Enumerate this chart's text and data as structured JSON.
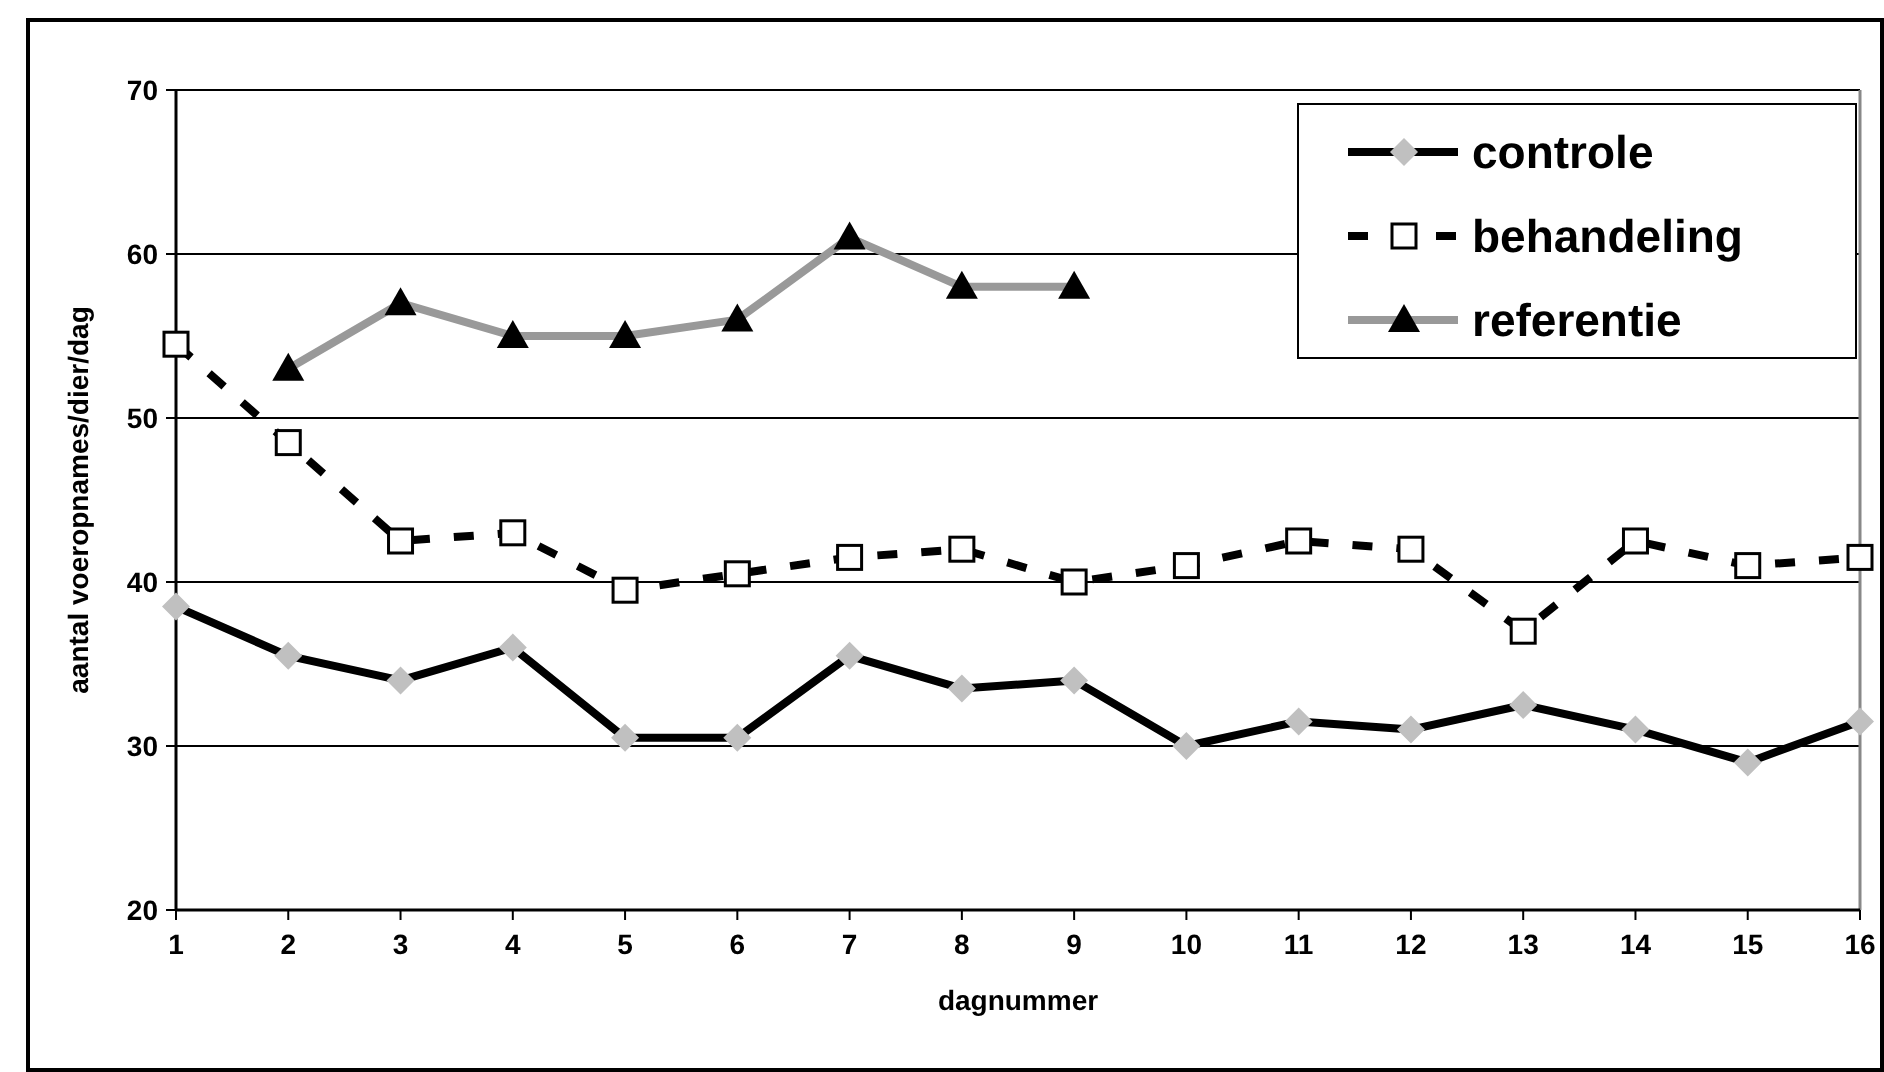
{
  "chart_data": {
    "type": "line",
    "xlabel": "dagnummer",
    "ylabel": "aantal voeropnames/dier/dag",
    "x": [
      1,
      2,
      3,
      4,
      5,
      6,
      7,
      8,
      9,
      10,
      11,
      12,
      13,
      14,
      15,
      16
    ],
    "xlim": [
      1,
      16
    ],
    "xticks": [
      1,
      2,
      3,
      4,
      5,
      6,
      7,
      8,
      9,
      10,
      11,
      12,
      13,
      14,
      15,
      16
    ],
    "ylim": [
      20,
      70
    ],
    "yticks": [
      20,
      30,
      40,
      50,
      60,
      70
    ],
    "grid": "y",
    "legend": "top right",
    "series": [
      {
        "name": "controle",
        "color": "#000000",
        "marker": "diamond",
        "line_style": "solid",
        "values": [
          38.5,
          35.5,
          34,
          36,
          30.5,
          30.5,
          35.5,
          33.5,
          34,
          30,
          31.5,
          31,
          32.5,
          31,
          29,
          31.5
        ]
      },
      {
        "name": "behandeling",
        "color": "#000000",
        "marker": "square",
        "line_style": "dashed",
        "values": [
          54.5,
          48.5,
          42.5,
          43,
          39.5,
          40.5,
          41.5,
          42,
          40,
          41,
          42.5,
          42,
          37,
          42.5,
          41,
          41.5
        ]
      },
      {
        "name": "referentie",
        "color": "#999999",
        "marker": "triangle",
        "line_style": "solid",
        "values": [
          null,
          53,
          57,
          55,
          55,
          56,
          61,
          58,
          58,
          null,
          null,
          null,
          null,
          null,
          null,
          null
        ]
      }
    ]
  }
}
